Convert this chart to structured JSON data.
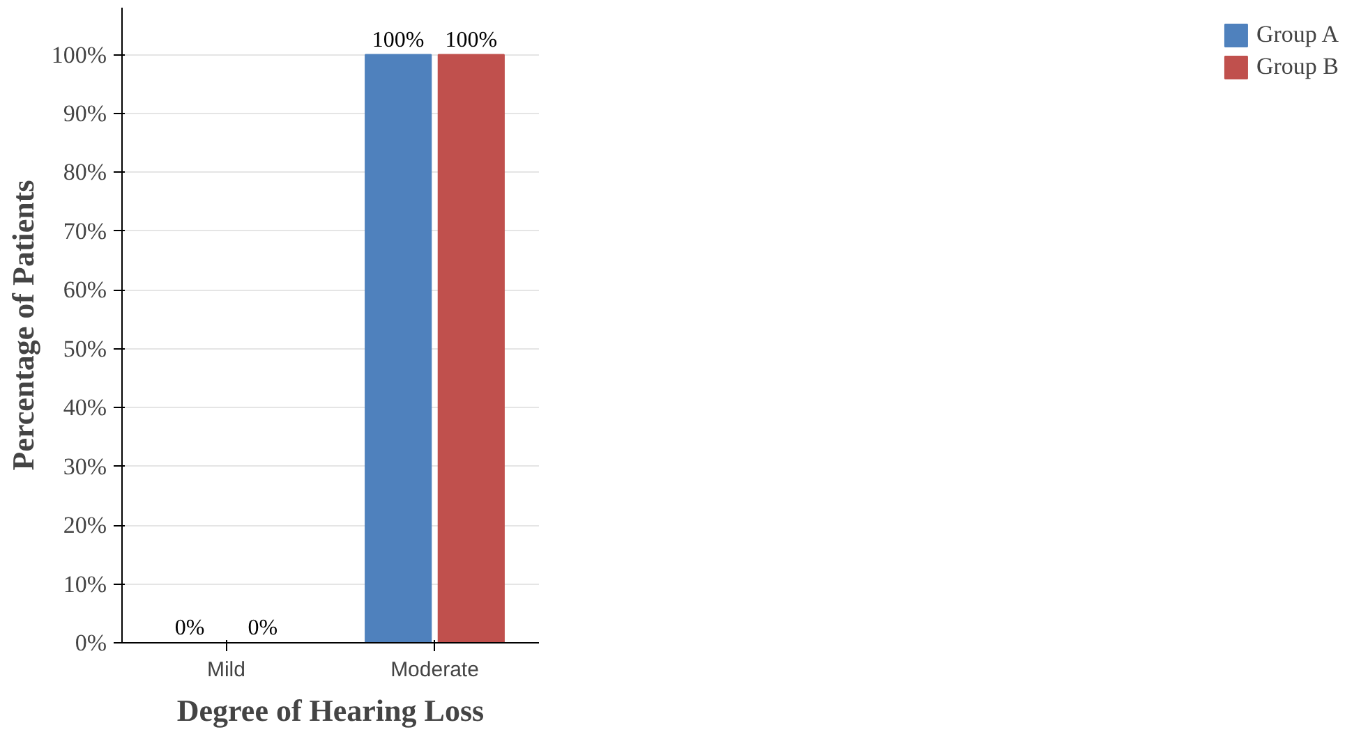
{
  "chart_data": {
    "type": "bar",
    "xlabel": "Degree of Hearing Loss",
    "ylabel": "Percentage of Patients",
    "categories": [
      "Mild",
      "Moderate"
    ],
    "series": [
      {
        "name": "Group A",
        "color": "#4f81bd",
        "values": [
          0,
          100
        ],
        "value_labels": [
          "0%",
          "100%"
        ]
      },
      {
        "name": "Group B",
        "color": "#c0504d",
        "values": [
          0,
          100
        ],
        "value_labels": [
          "0%",
          "100%"
        ]
      }
    ],
    "ylim": [
      0,
      100
    ],
    "yticks": [
      {
        "value": 0,
        "label": "0%"
      },
      {
        "value": 10,
        "label": "10%"
      },
      {
        "value": 20,
        "label": "20%"
      },
      {
        "value": 30,
        "label": "30%"
      },
      {
        "value": 40,
        "label": "40%"
      },
      {
        "value": 50,
        "label": "50%"
      },
      {
        "value": 60,
        "label": "60%"
      },
      {
        "value": 70,
        "label": "70%"
      },
      {
        "value": 80,
        "label": "80%"
      },
      {
        "value": 90,
        "label": "90%"
      },
      {
        "value": 100,
        "label": "100%"
      }
    ],
    "grid": "y",
    "legend": "right"
  }
}
